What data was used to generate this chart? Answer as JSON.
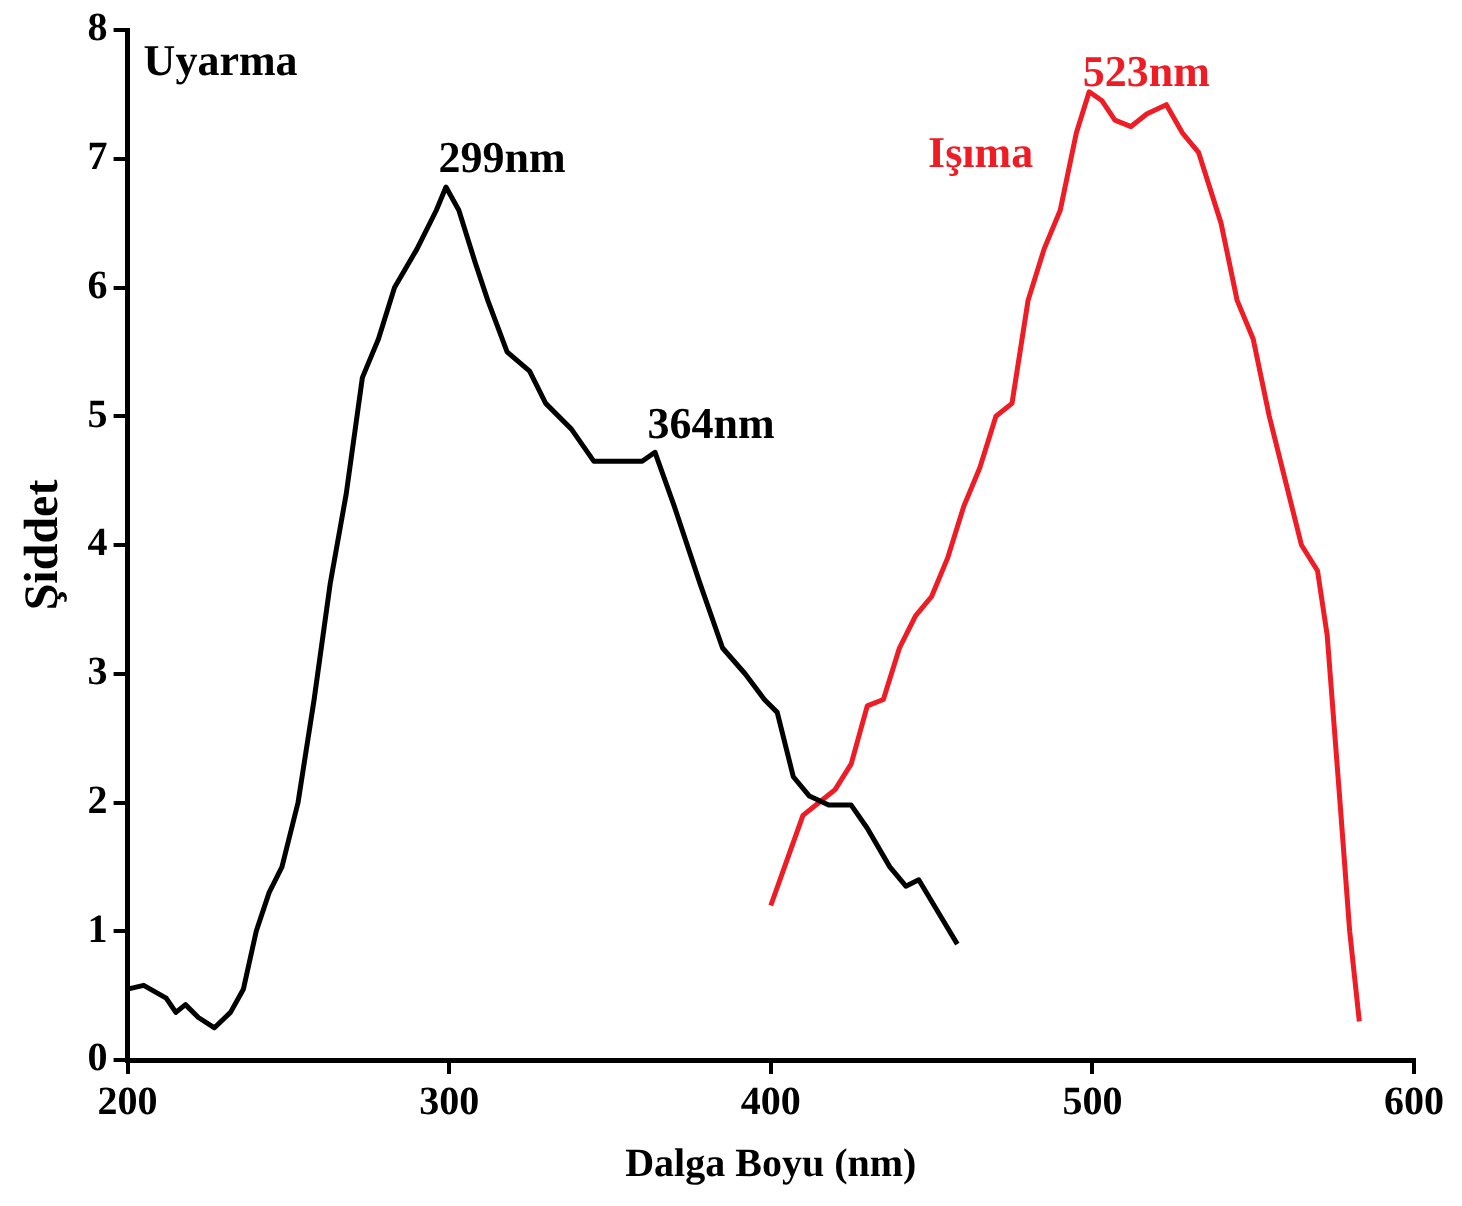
{
  "chart_data": {
    "type": "line",
    "xlabel": "Dalga Boyu (nm)",
    "ylabel": "Şiddet",
    "xlim": [
      200,
      600
    ],
    "xticks": [
      200,
      300,
      400,
      500,
      600
    ],
    "ylim": [
      0,
      8
    ],
    "yticks": [
      0,
      1,
      2,
      3,
      4,
      5,
      6,
      7,
      8
    ],
    "grid": false,
    "legend": false,
    "marker": "none",
    "line_style": "solid",
    "series": [
      {
        "name": "Uyarma",
        "color": "#000000",
        "x": [
          200,
          205,
          212,
          215,
          218,
          222,
          227,
          232,
          236,
          240,
          244,
          248,
          253,
          258,
          263,
          268,
          273,
          278,
          283,
          290,
          296,
          299,
          303,
          308,
          312,
          318,
          325,
          330,
          338,
          345,
          352,
          360,
          364,
          370,
          378,
          385,
          392,
          398,
          402,
          407,
          412,
          418,
          425,
          430,
          437,
          442,
          446,
          452,
          458
        ],
        "values": [
          0.55,
          0.58,
          0.48,
          0.37,
          0.43,
          0.33,
          0.25,
          0.37,
          0.55,
          1.0,
          1.3,
          1.5,
          2.0,
          2.8,
          3.7,
          4.4,
          5.3,
          5.6,
          6.0,
          6.3,
          6.6,
          6.78,
          6.6,
          6.2,
          5.9,
          5.5,
          5.35,
          5.1,
          4.9,
          4.65,
          4.65,
          4.65,
          4.72,
          4.3,
          3.7,
          3.2,
          3.0,
          2.8,
          2.7,
          2.2,
          2.05,
          1.98,
          1.98,
          1.8,
          1.5,
          1.35,
          1.4,
          1.15,
          0.9
        ]
      },
      {
        "name": "Işıma",
        "color": "#ee1c25",
        "x": [
          400,
          405,
          410,
          415,
          420,
          425,
          430,
          435,
          440,
          445,
          450,
          455,
          460,
          465,
          470,
          475,
          480,
          485,
          490,
          495,
          499,
          503,
          507,
          512,
          517,
          523,
          528,
          533,
          540,
          545,
          550,
          555,
          560,
          565,
          570,
          573,
          577,
          580,
          583
        ],
        "values": [
          1.2,
          1.55,
          1.9,
          2.0,
          2.1,
          2.3,
          2.75,
          2.8,
          3.2,
          3.45,
          3.6,
          3.9,
          4.3,
          4.6,
          5.0,
          5.1,
          5.9,
          6.3,
          6.6,
          7.2,
          7.52,
          7.45,
          7.3,
          7.25,
          7.35,
          7.42,
          7.2,
          7.05,
          6.5,
          5.9,
          5.6,
          5.0,
          4.5,
          4.0,
          3.8,
          3.3,
          2.0,
          1.0,
          0.3
        ]
      }
    ],
    "annotations": [
      {
        "text": "299nm",
        "x": 299,
        "y": 6.78
      },
      {
        "text": "364nm",
        "x": 364,
        "y": 4.72
      },
      {
        "text": "523nm",
        "x": 523,
        "y": 7.42
      }
    ]
  }
}
